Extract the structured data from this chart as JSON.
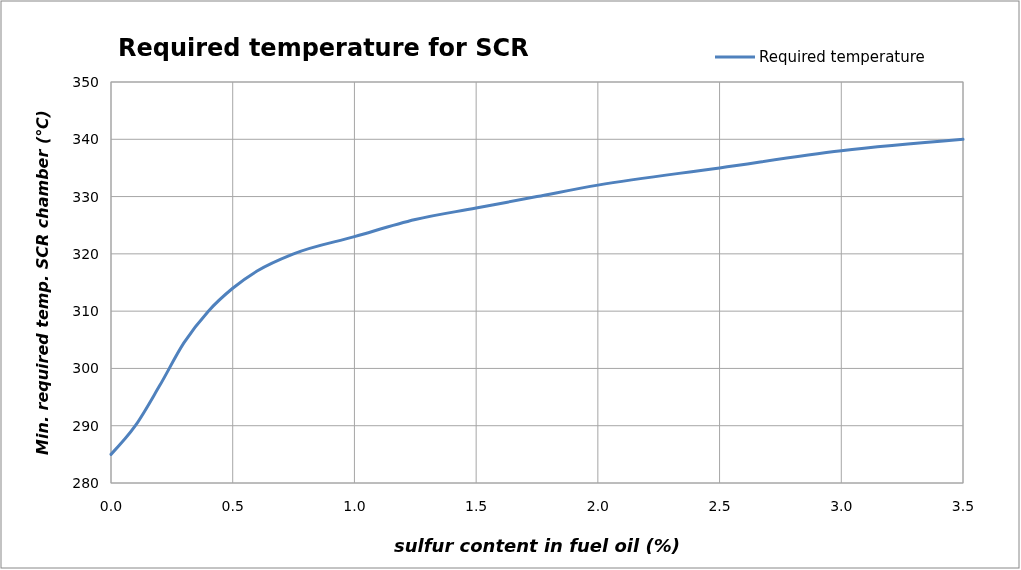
{
  "chart_data": {
    "type": "line",
    "title": "Required temperature for SCR",
    "xlabel": "sulfur content in fuel oil (%)",
    "ylabel": "Min. required temp. SCR chamber (℃)",
    "x": [
      0,
      0.1,
      0.2,
      0.3,
      0.4,
      0.5,
      0.6,
      0.75,
      1.0,
      1.25,
      1.5,
      1.75,
      2.0,
      2.5,
      3.0,
      3.5
    ],
    "series": [
      {
        "name": "Required temperature",
        "color": "#4f81bd",
        "values": [
          285,
          290,
          297,
          304.5,
          310,
          314,
          317,
          320,
          323,
          326,
          328,
          330,
          332,
          335,
          338,
          340
        ]
      }
    ],
    "xlim": [
      0,
      3.5
    ],
    "xticks": [
      {
        "value": 0,
        "label": "0.0"
      },
      {
        "value": 0.5,
        "label": "0.5"
      },
      {
        "value": 1,
        "label": "1.0"
      },
      {
        "value": 1.5,
        "label": "1.5"
      },
      {
        "value": 2,
        "label": "2.0"
      },
      {
        "value": 2.5,
        "label": "2.5"
      },
      {
        "value": 3,
        "label": "3.0"
      },
      {
        "value": 3.5,
        "label": "3.5"
      }
    ],
    "ylim": [
      280,
      350
    ],
    "yticks": [
      280,
      290,
      300,
      310,
      320,
      330,
      340,
      350
    ],
    "grid": true,
    "legend": "top right",
    "marker": "none",
    "line_style": "solid"
  }
}
